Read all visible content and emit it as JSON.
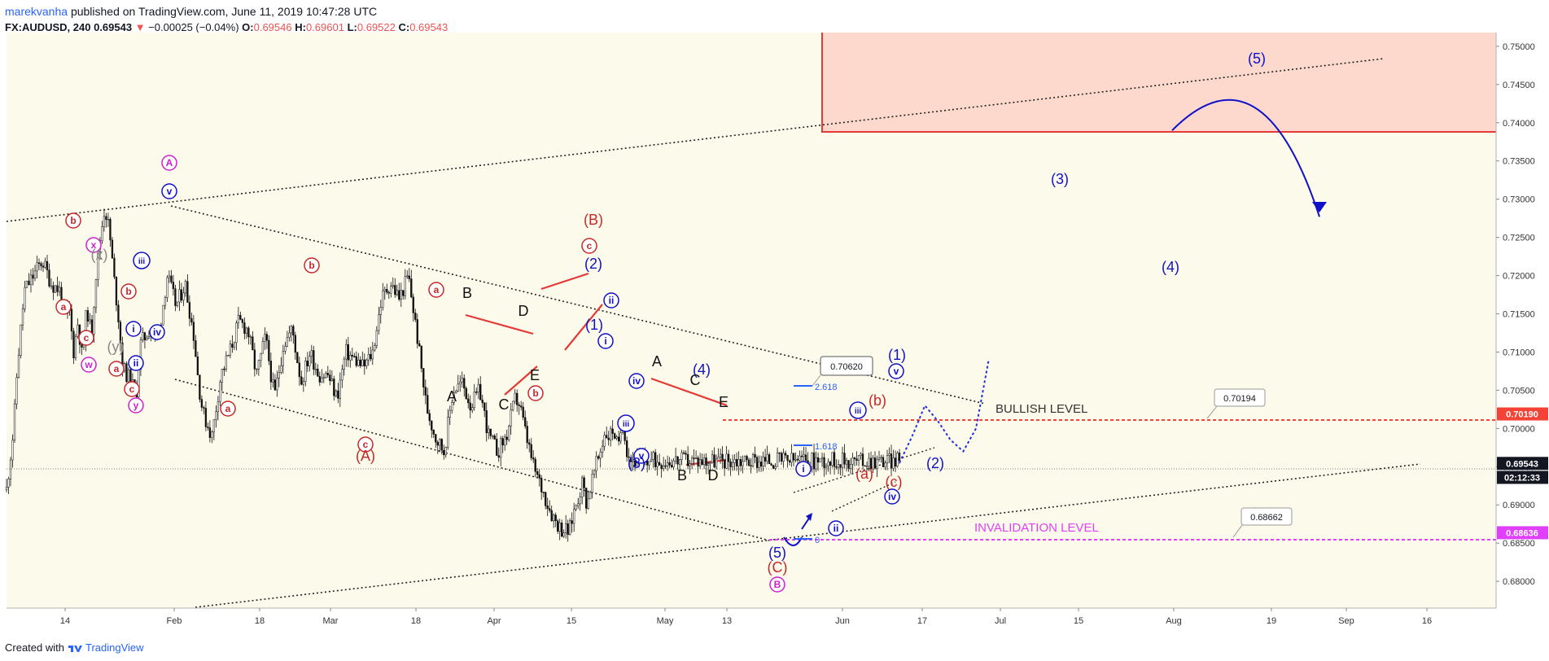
{
  "header": {
    "author": "marekvanha",
    "published_text": "published on TradingView.com, June 11, 2019 10:47:28 UTC",
    "symbol": "FX:AUDUSD, 240",
    "last": "0.69543",
    "change": "−0.00025 (−0.04%)",
    "o_label": "O:",
    "o_value": "0.69546",
    "h_label": "H:",
    "h_value": "0.69601",
    "l_label": "L:",
    "l_value": "0.69522",
    "c_label": "C:",
    "c_value": "0.69543"
  },
  "footer": {
    "created_with": "Created with",
    "brand": "TradingView"
  },
  "colors": {
    "background": "#fcfaeb",
    "candles": "#000000",
    "red": "#c62828",
    "blue": "#1010c8",
    "magenta": "#cc22cc",
    "zone": "#fcd9cc",
    "zone_border": "#e53935"
  },
  "chart_data": {
    "type": "candlestick",
    "ylim": [
      0.6765,
      0.7518
    ],
    "y_ticks": [
      "0.68000",
      "0.68500",
      "0.69000",
      "0.69500",
      "0.70000",
      "0.70500",
      "0.71000",
      "0.71500",
      "0.72000",
      "0.72500",
      "0.73000",
      "0.73500",
      "0.74000",
      "0.74500",
      "0.75000"
    ],
    "x_ticks": [
      "14",
      "Feb",
      "18",
      "Mar",
      "18",
      "Apr",
      "15",
      "May",
      "13",
      "Jun",
      "17",
      "Jul",
      "15",
      "Aug",
      "19",
      "Sep",
      "16"
    ],
    "price_badges": [
      {
        "label": "0.70190",
        "value": 0.7019,
        "color": "#f44336"
      },
      {
        "label": "0.69543",
        "value": 0.69543,
        "color": "#131722"
      },
      {
        "label": "02:12:33",
        "value": 0.6936,
        "color": "#131722"
      },
      {
        "label": "0.68636",
        "value": 0.68636,
        "color": "#e040fb"
      }
    ],
    "callouts": [
      "0.70620",
      "0.70194",
      "0.68662"
    ],
    "levels": [
      {
        "name": "BULLISH LEVEL",
        "value": 0.7019
      },
      {
        "name": "INVALIDATION LEVEL",
        "value": 0.68636
      }
    ],
    "fib_labels": [
      "2.618",
      "1.618",
      "0"
    ],
    "wave_labels": [
      "A",
      "B",
      "C",
      "D",
      "E",
      "(A)",
      "(B)",
      "(C)",
      "(1)",
      "(2)",
      "(3)",
      "(4)",
      "(5)",
      "a",
      "b",
      "c",
      "i",
      "ii",
      "iii",
      "iv",
      "v",
      "w",
      "x",
      "y",
      "(x)",
      "(y)",
      "(a)",
      "(b)",
      "(c)"
    ],
    "price_path": [
      [
        0,
        0.692
      ],
      [
        0.008,
        0.7
      ],
      [
        0.012,
        0.708
      ],
      [
        0.02,
        0.718
      ],
      [
        0.03,
        0.72
      ],
      [
        0.04,
        0.722
      ],
      [
        0.05,
        0.719
      ],
      [
        0.06,
        0.718
      ],
      [
        0.065,
        0.714
      ],
      [
        0.07,
        0.716
      ],
      [
        0.075,
        0.71
      ],
      [
        0.08,
        0.714
      ],
      [
        0.085,
        0.709
      ],
      [
        0.09,
        0.716
      ],
      [
        0.095,
        0.712
      ],
      [
        0.1,
        0.72
      ],
      [
        0.105,
        0.725
      ],
      [
        0.11,
        0.729
      ],
      [
        0.115,
        0.726
      ],
      [
        0.12,
        0.72
      ],
      [
        0.125,
        0.715
      ],
      [
        0.13,
        0.708
      ],
      [
        0.14,
        0.706
      ],
      [
        0.145,
        0.704
      ],
      [
        0.15,
        0.711
      ],
      [
        0.16,
        0.713
      ],
      [
        0.17,
        0.712
      ],
      [
        0.18,
        0.72
      ],
      [
        0.19,
        0.716
      ],
      [
        0.2,
        0.719
      ],
      [
        0.21,
        0.712
      ],
      [
        0.215,
        0.706
      ],
      [
        0.22,
        0.702
      ],
      [
        0.23,
        0.699
      ],
      [
        0.24,
        0.707
      ],
      [
        0.25,
        0.71
      ],
      [
        0.26,
        0.714
      ],
      [
        0.27,
        0.713
      ],
      [
        0.28,
        0.707
      ],
      [
        0.29,
        0.712
      ],
      [
        0.3,
        0.704
      ],
      [
        0.31,
        0.711
      ],
      [
        0.32,
        0.713
      ],
      [
        0.33,
        0.706
      ],
      [
        0.34,
        0.71
      ],
      [
        0.35,
        0.707
      ],
      [
        0.36,
        0.707
      ],
      [
        0.37,
        0.704
      ],
      [
        0.38,
        0.71
      ],
      [
        0.39,
        0.709
      ],
      [
        0.4,
        0.708
      ],
      [
        0.41,
        0.71
      ],
      [
        0.42,
        0.717
      ],
      [
        0.43,
        0.719
      ],
      [
        0.44,
        0.717
      ],
      [
        0.45,
        0.72
      ],
      [
        0.46,
        0.712
      ],
      [
        0.47,
        0.703
      ],
      [
        0.48,
        0.699
      ],
      [
        0.49,
        0.697
      ],
      [
        0.5,
        0.705
      ],
      [
        0.51,
        0.706
      ],
      [
        0.52,
        0.703
      ],
      [
        0.53,
        0.705
      ],
      [
        0.54,
        0.699
      ],
      [
        0.55,
        0.697
      ],
      [
        0.56,
        0.699
      ],
      [
        0.57,
        0.704
      ],
      [
        0.575,
        0.703
      ],
      [
        0.58,
        0.7
      ],
      [
        0.59,
        0.695
      ],
      [
        0.6,
        0.692
      ],
      [
        0.61,
        0.689
      ],
      [
        0.62,
        0.687
      ],
      [
        0.625,
        0.6868
      ],
      [
        0.63,
        0.6864
      ],
      [
        0.635,
        0.689
      ],
      [
        0.64,
        0.691
      ],
      [
        0.645,
        0.693
      ],
      [
        0.65,
        0.69
      ],
      [
        0.655,
        0.693
      ],
      [
        0.66,
        0.695
      ],
      [
        0.665,
        0.697
      ],
      [
        0.67,
        0.6995
      ],
      [
        0.675,
        0.699
      ],
      [
        0.68,
        0.7
      ],
      [
        0.685,
        0.697
      ],
      [
        0.69,
        0.7015
      ],
      [
        0.695,
        0.697
      ],
      [
        0.7,
        0.6958
      ]
    ],
    "projection": [
      [
        0.7,
        0.6955
      ],
      [
        0.71,
        0.699
      ],
      [
        0.72,
        0.703
      ],
      [
        0.73,
        0.701
      ],
      [
        0.74,
        0.6985
      ],
      [
        0.75,
        0.697
      ],
      [
        0.76,
        0.7
      ],
      [
        0.77,
        0.709
      ]
    ],
    "forecast_curve": [
      [
        0.76,
        0.739
      ],
      [
        0.93,
        0.746
      ],
      [
        1.0,
        0.7277
      ]
    ]
  }
}
